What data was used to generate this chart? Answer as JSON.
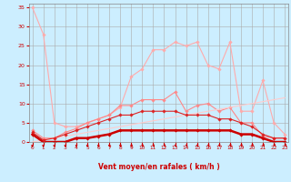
{
  "x": [
    0,
    1,
    2,
    3,
    4,
    5,
    6,
    7,
    8,
    9,
    10,
    11,
    12,
    13,
    14,
    15,
    16,
    17,
    18,
    19,
    20,
    21,
    22,
    23
  ],
  "series": [
    {
      "name": "light_pink_peaks",
      "color": "#ffaaaa",
      "linewidth": 0.8,
      "marker": "D",
      "markersize": 1.8,
      "y": [
        35,
        28,
        5,
        4,
        4,
        5,
        6,
        7,
        9,
        17,
        19,
        24,
        24,
        26,
        25,
        26,
        20,
        19,
        26,
        8,
        8,
        16,
        5,
        2
      ]
    },
    {
      "name": "medium_pink",
      "color": "#ff8888",
      "linewidth": 0.8,
      "marker": "D",
      "markersize": 1.8,
      "y": [
        3,
        1,
        1,
        2.5,
        3.5,
        5,
        6,
        7,
        9.5,
        9.5,
        11,
        11,
        11,
        13,
        8,
        9.5,
        10,
        8,
        9,
        5,
        5,
        1.5,
        1,
        1
      ]
    },
    {
      "name": "diagonal_light",
      "color": "#ffcccc",
      "linewidth": 0.8,
      "marker": null,
      "markersize": 0,
      "y": [
        0,
        0.5,
        1,
        1.5,
        2,
        2.5,
        3,
        3.5,
        4,
        4.5,
        5,
        5.5,
        6,
        6.5,
        7,
        7.5,
        8,
        8.5,
        9,
        9.5,
        10,
        10.5,
        11,
        11.5
      ]
    },
    {
      "name": "dark_red_thick",
      "color": "#cc0000",
      "linewidth": 1.8,
      "marker": "D",
      "markersize": 1.8,
      "y": [
        2,
        0,
        0,
        0,
        1,
        1,
        1.5,
        2,
        3,
        3,
        3,
        3,
        3,
        3,
        3,
        3,
        3,
        3,
        3,
        2,
        2,
        1,
        0,
        0
      ]
    },
    {
      "name": "medium_red",
      "color": "#dd2222",
      "linewidth": 0.8,
      "marker": "D",
      "markersize": 1.8,
      "y": [
        2.5,
        0.5,
        1,
        2,
        3,
        4,
        5,
        6,
        7,
        7,
        8,
        8,
        8,
        8,
        7,
        7,
        7,
        6,
        6,
        5,
        4,
        2,
        1,
        1
      ]
    }
  ],
  "xlim": [
    -0.3,
    23.3
  ],
  "ylim": [
    0,
    36
  ],
  "yticks": [
    0,
    5,
    10,
    15,
    20,
    25,
    30,
    35
  ],
  "xticks": [
    0,
    1,
    2,
    3,
    4,
    5,
    6,
    7,
    8,
    9,
    10,
    11,
    12,
    13,
    14,
    15,
    16,
    17,
    18,
    19,
    20,
    21,
    22,
    23
  ],
  "xlabel": "Vent moyen/en rafales ( km/h )",
  "bg_color": "#cceeff",
  "grid_color": "#aaaaaa",
  "tick_color": "#cc0000",
  "label_color": "#cc0000",
  "arrow_color": "#cc0000"
}
